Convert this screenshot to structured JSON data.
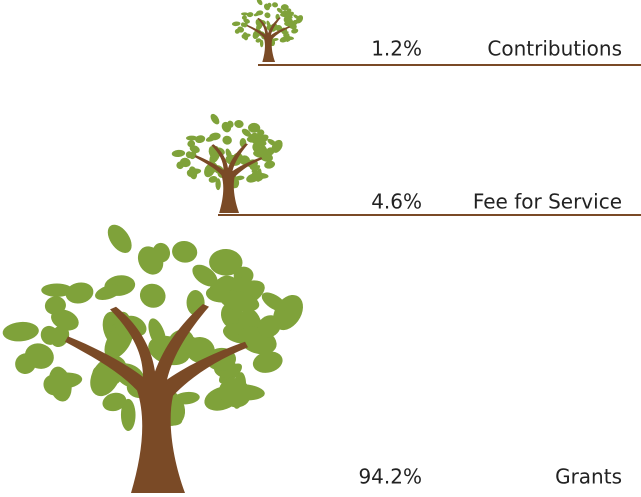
{
  "chart_data": {
    "type": "tree-pictogram",
    "categories": [
      "Contributions",
      "Fee for Service",
      "Grants"
    ],
    "values": [
      1.2,
      4.6,
      94.2
    ],
    "value_labels": [
      "1.2%",
      "4.6%",
      "94.2%"
    ],
    "color": "#7fa23a",
    "trunk_color": "#7a4a26"
  }
}
